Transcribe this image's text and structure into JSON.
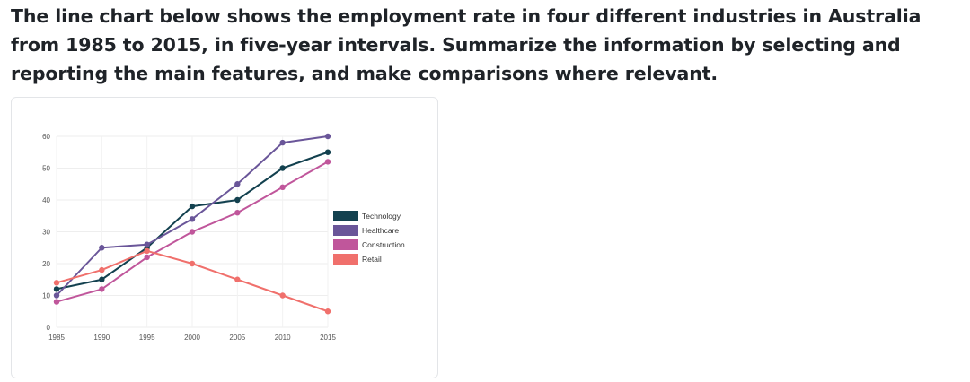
{
  "prompt": {
    "text": "The line chart below shows the employment rate in four different industries in Australia from 1985 to 2015, in five-year intervals. Summarize the information by selecting and reporting the main features, and make comparisons where relevant."
  },
  "chart_data": {
    "type": "line",
    "title": "",
    "xlabel": "",
    "ylabel": "",
    "x": [
      "1985",
      "1990",
      "1995",
      "2000",
      "2005",
      "2010",
      "2015"
    ],
    "y_ticks": [
      "0",
      "10",
      "20",
      "30",
      "40",
      "50",
      "60"
    ],
    "ylim": [
      0,
      60
    ],
    "grid": true,
    "legend_position": "right",
    "series": [
      {
        "name": "Technology",
        "color": "#13414f",
        "values": [
          12,
          15,
          25,
          38,
          40,
          50,
          55
        ]
      },
      {
        "name": "Healthcare",
        "color": "#6a5699",
        "values": [
          10,
          25,
          26,
          34,
          45,
          58,
          60
        ]
      },
      {
        "name": "Construction",
        "color": "#c0569b",
        "values": [
          8,
          12,
          22,
          30,
          36,
          44,
          52
        ]
      },
      {
        "name": "Retail",
        "color": "#f0706c",
        "values": [
          14,
          18,
          24,
          20,
          15,
          10,
          5
        ]
      }
    ]
  }
}
